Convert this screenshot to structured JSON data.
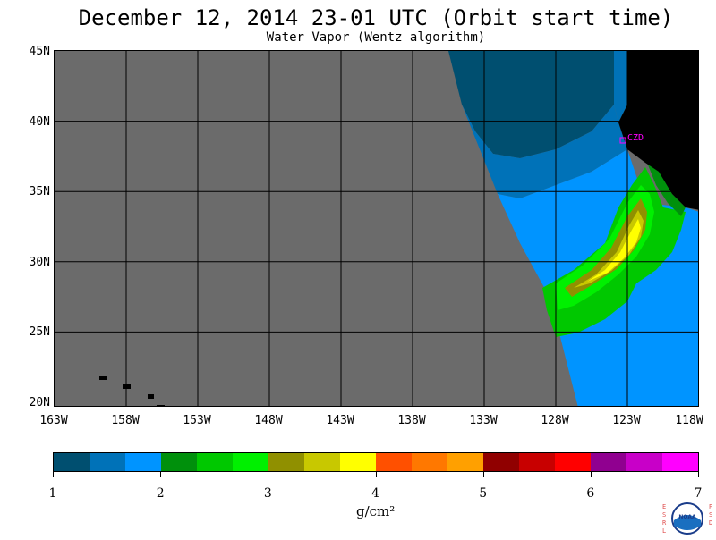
{
  "header": {
    "title": "December 12, 2014  23-01 UTC  (Orbit start time)",
    "subtitle": "Water Vapor (Wentz algorithm)"
  },
  "map": {
    "lat_labels": [
      "45N",
      "40N",
      "35N",
      "30N",
      "25N",
      "20N"
    ],
    "lon_labels": [
      "163W",
      "158W",
      "153W",
      "148W",
      "143W",
      "138W",
      "133W",
      "128W",
      "123W",
      "118W"
    ],
    "station_label": "CZD",
    "colors": {
      "no_data": "#6b6b6b",
      "land": "#000000",
      "station": "#ff00ff"
    }
  },
  "colorbar": {
    "labels": [
      "1",
      "2",
      "3",
      "4",
      "5",
      "6",
      "7"
    ],
    "units": "g/cm²",
    "colors": [
      "#004f70",
      "#0072b8",
      "#0094ff",
      "#00900c",
      "#00c800",
      "#00f000",
      "#909000",
      "#c8c800",
      "#ffff00",
      "#ff5000",
      "#ff7800",
      "#ffa000",
      "#900000",
      "#c80000",
      "#ff0000",
      "#900090",
      "#c800c8",
      "#ff00ff"
    ]
  },
  "logo": {
    "left_text": "ESRL",
    "right_text": "PSD",
    "center_text": "NOAA"
  }
}
